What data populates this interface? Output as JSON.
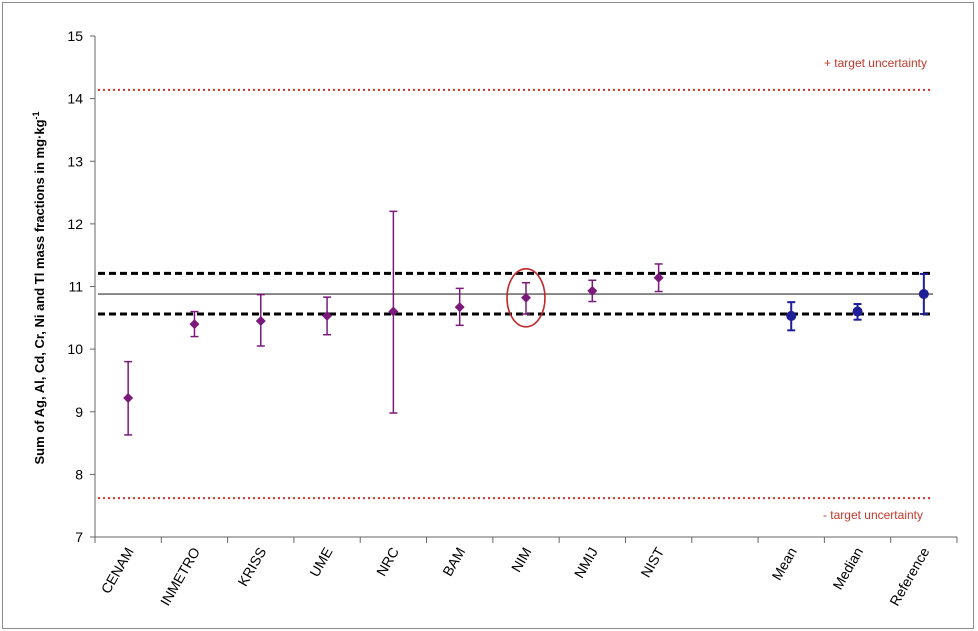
{
  "chart_data": {
    "type": "scatter",
    "title": "",
    "xlabel": "",
    "ylabel": "Sum of Ag, Al, Cd, Cr, Ni and Tl mass fractions in mg·kg",
    "ylabel_superscript": "-1",
    "ylim": [
      7,
      15
    ],
    "yticks": [
      7,
      8,
      9,
      10,
      11,
      12,
      13,
      14,
      15
    ],
    "grid": false,
    "categories": [
      "CENAM",
      "INMETRO",
      "KRISS",
      "UME",
      "NRC",
      "BAM",
      "NIM",
      "NMIJ",
      "NIST",
      "",
      "Mean",
      "Median",
      "Reference"
    ],
    "series": [
      {
        "color": "#7b1a7b",
        "marker": "diamond",
        "points": [
          {
            "category": "CENAM",
            "value": 9.22,
            "low": 8.63,
            "high": 9.8
          },
          {
            "category": "INMETRO",
            "value": 10.4,
            "low": 10.2,
            "high": 10.6
          },
          {
            "category": "KRISS",
            "value": 10.45,
            "low": 10.05,
            "high": 10.87
          },
          {
            "category": "UME",
            "value": 10.53,
            "low": 10.23,
            "high": 10.83
          },
          {
            "category": "NRC",
            "value": 10.6,
            "low": 8.98,
            "high": 12.2
          },
          {
            "category": "BAM",
            "value": 10.67,
            "low": 10.38,
            "high": 10.97
          },
          {
            "category": "NIM",
            "value": 10.82,
            "low": 10.56,
            "high": 11.06
          },
          {
            "category": "NMIJ",
            "value": 10.93,
            "low": 10.76,
            "high": 11.1
          },
          {
            "category": "NIST",
            "value": 11.14,
            "low": 10.92,
            "high": 11.36
          }
        ]
      },
      {
        "color": "#1e1e96",
        "marker": "circle",
        "points": [
          {
            "category": "Mean",
            "value": 10.53,
            "low": 10.3,
            "high": 10.75
          },
          {
            "category": "Median",
            "value": 10.6,
            "low": 10.47,
            "high": 10.72
          },
          {
            "category": "Reference",
            "value": 10.88,
            "low": 10.56,
            "high": 11.2
          }
        ]
      }
    ],
    "reference_lines": [
      {
        "value": 10.88,
        "style": "solid",
        "color": "#707070"
      },
      {
        "value": 11.21,
        "style": "dashed",
        "color": "#000000"
      },
      {
        "value": 10.56,
        "style": "dashed",
        "color": "#000000"
      },
      {
        "value": 14.14,
        "style": "dotted",
        "color": "#d9302a"
      },
      {
        "value": 7.62,
        "style": "dotted",
        "color": "#d9302a"
      }
    ],
    "annotations": {
      "upper": "+ target uncertainty",
      "lower": "- target uncertainty",
      "color": "#c0392b"
    },
    "highlight": {
      "category": "NIM",
      "color": "#c0282a"
    }
  }
}
